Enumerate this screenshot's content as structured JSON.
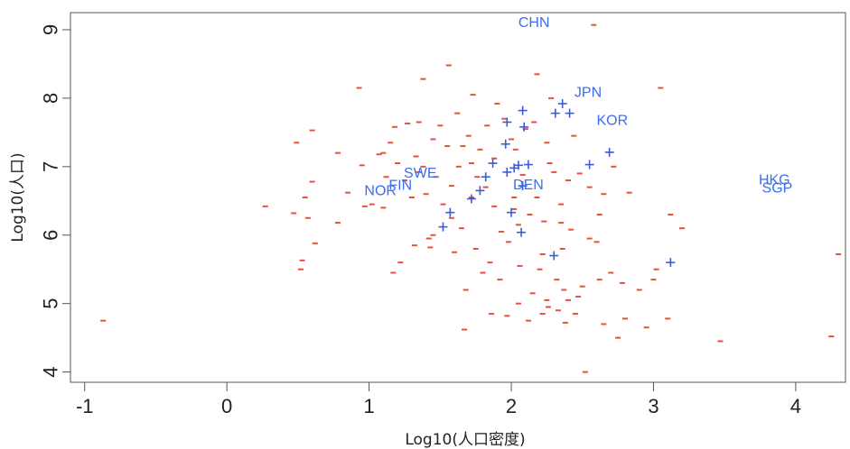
{
  "chart_data": {
    "type": "scatter",
    "xlabel": "Log10(人口密度)",
    "ylabel": "Log10(人口)",
    "xlim": [
      -1.1,
      4.35
    ],
    "ylim": [
      3.85,
      9.25
    ],
    "x_ticks": [
      -1,
      0,
      1,
      2,
      3,
      4
    ],
    "y_ticks": [
      4,
      5,
      6,
      7,
      8,
      9
    ],
    "grid": false,
    "legend": "none",
    "colors": {
      "other": "#e8503c",
      "highlight": "#3b5bdb",
      "label": "#3b6df0"
    },
    "series": [
      {
        "marker": "dash",
        "points": [
          [
            -0.87,
            4.75
          ],
          [
            0.27,
            6.42
          ],
          [
            0.47,
            6.32
          ],
          [
            0.49,
            7.35
          ],
          [
            0.52,
            5.5
          ],
          [
            0.53,
            5.63
          ],
          [
            0.55,
            6.55
          ],
          [
            0.57,
            6.25
          ],
          [
            0.6,
            6.78
          ],
          [
            0.6,
            7.53
          ],
          [
            0.62,
            5.88
          ],
          [
            0.78,
            6.18
          ],
          [
            0.78,
            7.2
          ],
          [
            0.85,
            6.62
          ],
          [
            0.93,
            8.15
          ],
          [
            0.95,
            7.02
          ],
          [
            0.97,
            6.42
          ],
          [
            1.02,
            6.45
          ],
          [
            1.07,
            7.18
          ],
          [
            1.1,
            6.4
          ],
          [
            1.12,
            6.85
          ],
          [
            1.15,
            7.35
          ],
          [
            1.17,
            5.45
          ],
          [
            1.18,
            7.58
          ],
          [
            1.2,
            7.05
          ],
          [
            1.22,
            5.6
          ],
          [
            1.25,
            6.8
          ],
          [
            1.27,
            7.63
          ],
          [
            1.3,
            6.55
          ],
          [
            1.32,
            5.85
          ],
          [
            1.33,
            7.15
          ],
          [
            1.35,
            7.65
          ],
          [
            1.38,
            8.28
          ],
          [
            1.38,
            7.0
          ],
          [
            1.4,
            6.6
          ],
          [
            1.42,
            5.95
          ],
          [
            1.43,
            5.82
          ],
          [
            1.45,
            7.4
          ],
          [
            1.47,
            6.85
          ],
          [
            1.5,
            7.6
          ],
          [
            1.52,
            6.45
          ],
          [
            1.55,
            7.3
          ],
          [
            1.56,
            8.48
          ],
          [
            1.58,
            6.25
          ],
          [
            1.6,
            5.75
          ],
          [
            1.62,
            7.78
          ],
          [
            1.63,
            7.0
          ],
          [
            1.65,
            6.1
          ],
          [
            1.67,
            4.62
          ],
          [
            1.68,
            5.2
          ],
          [
            1.7,
            7.45
          ],
          [
            1.72,
            6.55
          ],
          [
            1.73,
            8.05
          ],
          [
            1.75,
            5.8
          ],
          [
            1.76,
            6.85
          ],
          [
            1.78,
            7.25
          ],
          [
            1.8,
            5.45
          ],
          [
            1.82,
            6.7
          ],
          [
            1.83,
            7.6
          ],
          [
            1.85,
            5.6
          ],
          [
            1.86,
            4.85
          ],
          [
            1.88,
            7.12
          ],
          [
            1.9,
            7.92
          ],
          [
            1.92,
            5.35
          ],
          [
            1.93,
            6.05
          ],
          [
            1.95,
            7.7
          ],
          [
            1.97,
            4.82
          ],
          [
            1.98,
            5.9
          ],
          [
            2.0,
            7.4
          ],
          [
            2.02,
            6.38
          ],
          [
            2.03,
            7.25
          ],
          [
            2.05,
            6.15
          ],
          [
            2.05,
            5.0
          ],
          [
            2.08,
            6.88
          ],
          [
            2.1,
            7.55
          ],
          [
            2.12,
            4.75
          ],
          [
            2.13,
            6.3
          ],
          [
            2.15,
            5.15
          ],
          [
            2.16,
            7.65
          ],
          [
            2.18,
            8.35
          ],
          [
            2.2,
            5.5
          ],
          [
            2.22,
            4.85
          ],
          [
            2.23,
            6.2
          ],
          [
            2.25,
            5.05
          ],
          [
            2.26,
            4.95
          ],
          [
            2.27,
            7.05
          ],
          [
            2.28,
            8.0
          ],
          [
            2.3,
            6.92
          ],
          [
            2.32,
            5.35
          ],
          [
            2.33,
            4.9
          ],
          [
            2.35,
            6.45
          ],
          [
            2.36,
            5.8
          ],
          [
            2.37,
            5.2
          ],
          [
            2.38,
            4.72
          ],
          [
            2.4,
            5.05
          ],
          [
            2.42,
            6.08
          ],
          [
            2.44,
            7.45
          ],
          [
            2.45,
            4.85
          ],
          [
            2.47,
            5.1
          ],
          [
            2.48,
            6.9
          ],
          [
            2.5,
            5.25
          ],
          [
            2.52,
            4.0
          ],
          [
            2.55,
            6.7
          ],
          [
            2.58,
            9.07
          ],
          [
            2.6,
            5.9
          ],
          [
            2.62,
            5.35
          ],
          [
            2.65,
            4.7
          ],
          [
            2.65,
            6.6
          ],
          [
            2.7,
            5.45
          ],
          [
            2.75,
            4.5
          ],
          [
            2.78,
            5.3
          ],
          [
            2.8,
            4.78
          ],
          [
            2.83,
            6.62
          ],
          [
            2.9,
            5.2
          ],
          [
            2.95,
            4.65
          ],
          [
            3.0,
            5.35
          ],
          [
            3.02,
            5.5
          ],
          [
            3.05,
            8.15
          ],
          [
            3.1,
            4.78
          ],
          [
            3.12,
            6.3
          ],
          [
            3.2,
            6.1
          ],
          [
            3.47,
            4.45
          ],
          [
            4.25,
            4.52
          ],
          [
            4.3,
            5.72
          ],
          [
            1.1,
            7.2
          ],
          [
            1.45,
            6.0
          ],
          [
            1.72,
            7.05
          ],
          [
            2.02,
            6.55
          ],
          [
            2.18,
            6.55
          ],
          [
            2.25,
            7.35
          ],
          [
            2.35,
            6.18
          ],
          [
            2.55,
            5.95
          ],
          [
            1.35,
            6.92
          ],
          [
            1.58,
            6.72
          ],
          [
            1.66,
            7.3
          ],
          [
            1.88,
            6.42
          ],
          [
            2.06,
            5.55
          ],
          [
            2.22,
            5.72
          ],
          [
            2.4,
            6.8
          ],
          [
            2.62,
            6.3
          ],
          [
            2.72,
            7.0
          ]
        ]
      },
      {
        "marker": "plus",
        "points": [
          [
            1.52,
            6.12
          ],
          [
            1.57,
            6.33
          ],
          [
            1.72,
            6.53
          ],
          [
            1.78,
            6.65
          ],
          [
            1.82,
            6.85
          ],
          [
            1.87,
            7.05
          ],
          [
            1.97,
            6.92
          ],
          [
            2.0,
            6.33
          ],
          [
            2.02,
            6.98
          ],
          [
            2.05,
            7.02
          ],
          [
            2.07,
            6.04
          ],
          [
            2.08,
            6.72
          ],
          [
            2.12,
            7.03
          ],
          [
            1.96,
            7.33
          ],
          [
            1.97,
            7.65
          ],
          [
            2.09,
            7.58
          ],
          [
            2.08,
            7.82
          ],
          [
            2.31,
            7.78
          ],
          [
            2.36,
            7.92
          ],
          [
            2.41,
            7.78
          ],
          [
            2.55,
            7.03
          ],
          [
            2.69,
            7.21
          ],
          [
            2.3,
            5.7
          ],
          [
            3.12,
            5.6
          ]
        ]
      }
    ],
    "annotations": [
      {
        "text": "CHN",
        "x": 2.16,
        "y": 9.1
      },
      {
        "text": "JPN",
        "x": 2.54,
        "y": 8.08
      },
      {
        "text": "KOR",
        "x": 2.71,
        "y": 7.67
      },
      {
        "text": "SWE",
        "x": 1.36,
        "y": 6.9
      },
      {
        "text": "FIN",
        "x": 1.22,
        "y": 6.72
      },
      {
        "text": "NOR",
        "x": 1.08,
        "y": 6.64
      },
      {
        "text": "DEN",
        "x": 2.12,
        "y": 6.73
      },
      {
        "text": "HKG",
        "x": 3.85,
        "y": 6.8
      },
      {
        "text": "SGP",
        "x": 3.87,
        "y": 6.68
      }
    ]
  }
}
